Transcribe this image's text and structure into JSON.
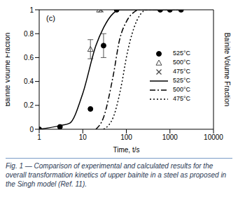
{
  "chart_data": {
    "type": "line",
    "annotations": [
      "(c)"
    ],
    "caption": "Fig. 1 — Comparison of experimental and calculated results for the overall transformation kinetics of upper bainite in a steel as proposed in the Singh model (Ref. 11).",
    "x_label": "Time, t/s",
    "y_label": "Bainite Volume Fraction",
    "log": "x",
    "xlim": [
      1,
      10000
    ],
    "xticks": [
      1,
      10,
      100,
      1000,
      10000
    ],
    "ylim": [
      0,
      1
    ],
    "yticks": [
      0,
      0.2,
      0.4,
      0.6,
      0.8,
      1
    ],
    "grid": false,
    "legend": "right",
    "series": [
      {
        "name": "525°C",
        "type": "scatter",
        "marker": "circle",
        "color": "#000000",
        "x": [
          1,
          3,
          15,
          30,
          60,
          600,
          1000,
          1800
        ],
        "values": [
          0.0,
          0.02,
          0.17,
          0.7,
          1.0,
          1.0,
          1.0,
          1.0
        ],
        "errors": [
          null,
          null,
          null,
          0.1,
          null,
          null,
          null,
          null
        ]
      },
      {
        "name": "500°C",
        "type": "scatter",
        "marker": "triangle",
        "color": "#444444",
        "x": [
          15,
          24
        ],
        "values": [
          0.67,
          1.0
        ],
        "errors": [
          0.08,
          null
        ]
      },
      {
        "name": "475°C",
        "type": "scatter",
        "marker": "x",
        "color": "#444444",
        "x": [
          26
        ],
        "values": [
          1.0
        ],
        "errors": [
          null
        ]
      },
      {
        "name": "525°C",
        "type": "line",
        "line_style": "solid",
        "color": "#000000",
        "x": [
          1,
          3,
          5,
          10,
          20,
          30,
          50,
          70,
          2000
        ],
        "values": [
          0.0,
          0.03,
          0.05,
          0.3,
          0.7,
          0.85,
          0.97,
          1.0,
          1.0
        ]
      },
      {
        "name": "500°C",
        "type": "line",
        "line_style": "dashdot",
        "color": "#000000",
        "x": [
          20,
          30,
          50,
          70,
          100,
          150,
          200,
          2000
        ],
        "values": [
          0.0,
          0.1,
          0.45,
          0.75,
          0.9,
          0.98,
          1.0,
          1.0
        ]
      },
      {
        "name": "475°C",
        "type": "line",
        "line_style": "dotted",
        "color": "#000000",
        "x": [
          30,
          50,
          80,
          100,
          150,
          200,
          300,
          2000
        ],
        "values": [
          0.0,
          0.1,
          0.4,
          0.6,
          0.85,
          0.95,
          1.0,
          1.0
        ]
      }
    ]
  }
}
